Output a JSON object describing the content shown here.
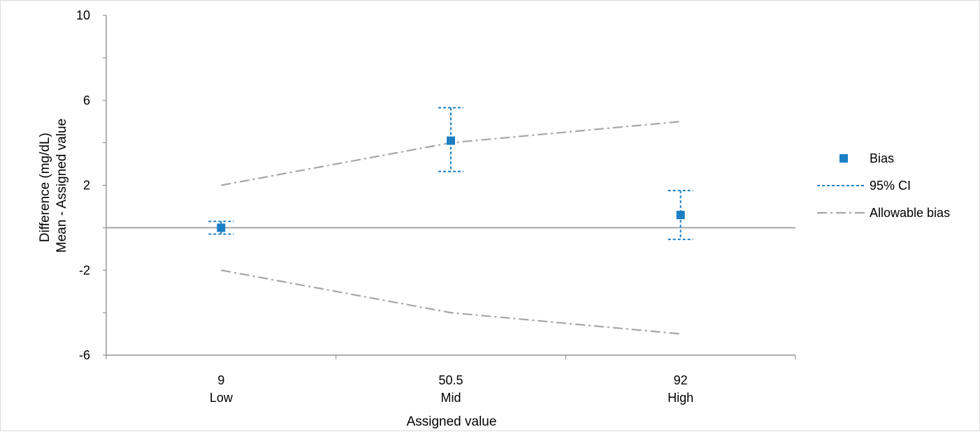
{
  "chart_data": {
    "type": "scatter",
    "title": "",
    "xlabel": "Assigned value",
    "ylabel_lines": [
      "Difference (mg/dL)",
      "Mean - Assigned value"
    ],
    "ylim": [
      -6,
      10
    ],
    "yticks": [
      -6,
      -2,
      2,
      6,
      10
    ],
    "y_minor_step": 2,
    "categories": [
      {
        "value": "9",
        "level": "Low"
      },
      {
        "value": "50.5",
        "level": "Mid"
      },
      {
        "value": "92",
        "level": "High"
      }
    ],
    "reference_line": 0,
    "series": [
      {
        "name": "Bias",
        "kind": "marker",
        "color": "#1b7fc4",
        "values": [
          0.0,
          4.1,
          0.6
        ]
      },
      {
        "name": "95% CI",
        "kind": "errorbar",
        "color": "#1b7fc4",
        "lower": [
          -0.3,
          2.65,
          -0.55
        ],
        "upper": [
          0.3,
          5.65,
          1.75
        ]
      },
      {
        "name": "Allowable bias",
        "kind": "dashdot",
        "color": "#a6a6a6",
        "upper": [
          2.0,
          4.0,
          5.0
        ],
        "lower": [
          -2.0,
          -4.0,
          -5.0
        ]
      }
    ],
    "legend_position": "right",
    "grid": false
  }
}
